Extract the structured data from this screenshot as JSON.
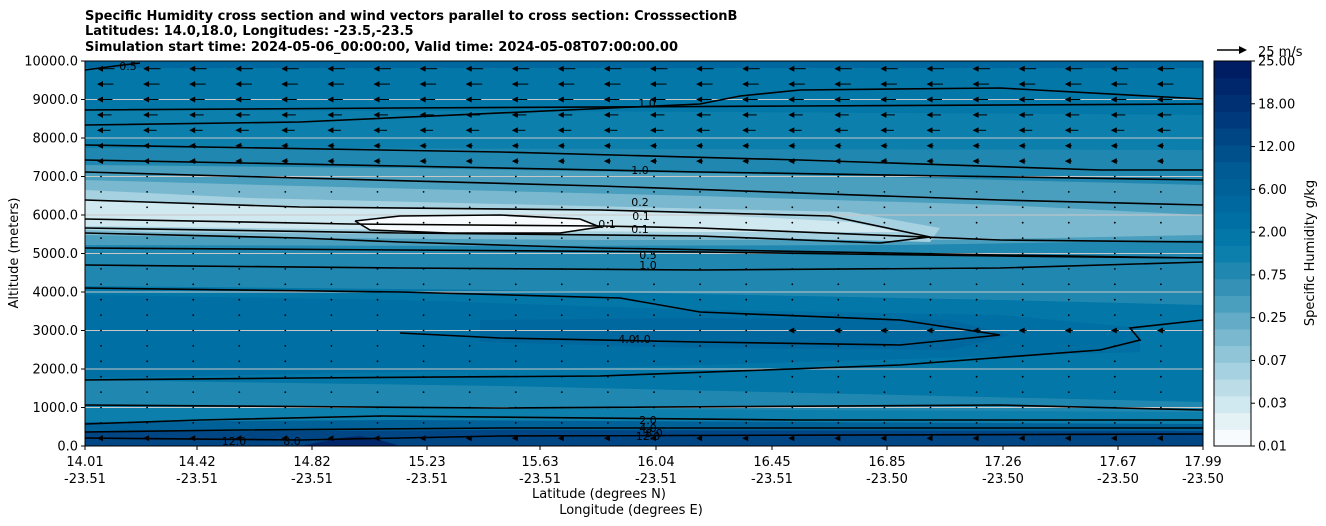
{
  "chart_data": {
    "type": "heatmap",
    "title_lines": [
      "Specific Humidity cross section and wind vectors parallel to cross section: CrosssectionB",
      "Latitudes: 14.0,18.0, Longitudes: -23.5,-23.5",
      "Simulation start time: 2024-05-06_00:00:00, Valid time: 2024-05-08T07:00:00.00"
    ],
    "ylabel": "Altitude (meters)",
    "xlabel_lat": "Latitude (degrees N)",
    "xlabel_lon": "Longitude (degrees E)",
    "ylim": [
      0,
      10000
    ],
    "y_ticks": [
      0,
      1000,
      2000,
      3000,
      4000,
      5000,
      6000,
      7000,
      8000,
      9000,
      10000
    ],
    "y_tick_labels": [
      "0.0",
      "1000.0",
      "2000.0",
      "3000.0",
      "4000.0",
      "5000.0",
      "6000.0",
      "7000.0",
      "8000.0",
      "9000.0",
      "10000.0"
    ],
    "x_lat_labels": [
      "14.01",
      "14.42",
      "14.82",
      "15.23",
      "15.63",
      "16.04",
      "16.45",
      "16.85",
      "17.26",
      "17.67",
      "17.99"
    ],
    "x_lon_labels": [
      "-23.51",
      "-23.51",
      "-23.51",
      "-23.51",
      "-23.51",
      "-23.51",
      "-23.51",
      "-23.50",
      "-23.50",
      "-23.50",
      "-23.50"
    ],
    "colorbar": {
      "label": "Specific Humidity g/kg",
      "levels": [
        0.01,
        0.02,
        0.03,
        0.05,
        0.07,
        0.1,
        0.15,
        0.25,
        0.35,
        0.5,
        0.75,
        1.0,
        1.5,
        2.0,
        3.0,
        4.0,
        6.0,
        8.0,
        10.0,
        12.0,
        15.0,
        18.0,
        21.0,
        25.0
      ],
      "tick_labels": [
        "0.01",
        "0.03",
        "0.07",
        "0.25",
        "0.75",
        "2.00",
        "6.00",
        "12.00",
        "18.00",
        "25.00"
      ],
      "colors": [
        "#f7fbfd",
        "#e4f1f5",
        "#d0e8ef",
        "#bcdde8",
        "#a6d1e0",
        "#90c5d8",
        "#7ab8cf",
        "#63abc6",
        "#4a9ebe",
        "#3592b6",
        "#2088b0",
        "#0d7fac",
        "#0277a8",
        "#006fa3",
        "#00689e",
        "#006199",
        "#005a94",
        "#00508c",
        "#004584",
        "#003a7c",
        "#003074",
        "#00266b",
        "#001c62"
      ]
    },
    "quiver_key": "25 m/s",
    "contour_labels": [
      "0.5",
      "1.0",
      "1.0",
      "0.2",
      "0.1",
      "0.1",
      "0.1",
      "0.5",
      "1.0",
      "4.0",
      "4.0",
      "2.0",
      "4.0",
      "8.0",
      "12.0",
      "12.0",
      "8.0"
    ],
    "contour_levels": [
      0.1,
      0.2,
      0.5,
      1.0,
      2.0,
      4.0,
      8.0,
      12.0
    ],
    "wind_note": "Wind vectors point toward decreasing latitude (southward); strongest above 8000 m, weak to calm between 1000 and 7500 m"
  }
}
